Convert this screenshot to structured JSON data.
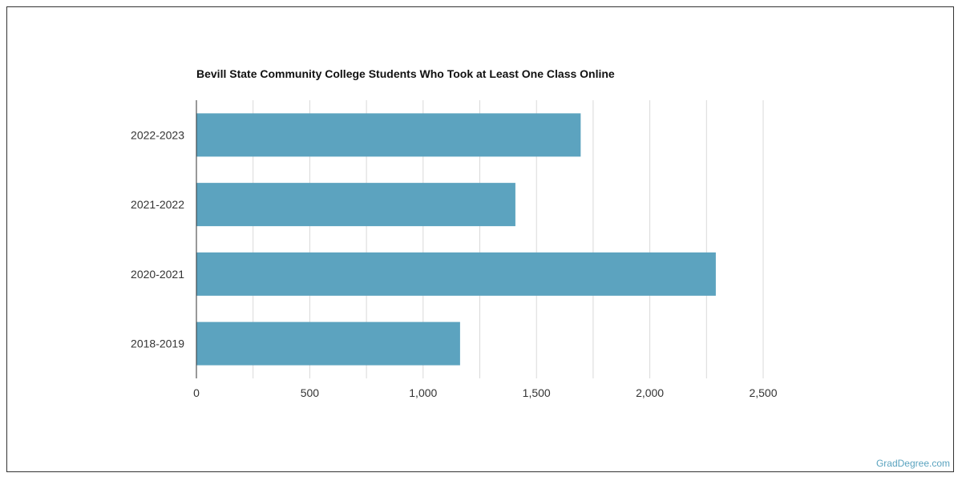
{
  "chart_data": {
    "type": "bar",
    "orientation": "horizontal",
    "title": "Bevill State Community College Students Who Took at Least One Class Online",
    "categories": [
      "2022-2023",
      "2021-2022",
      "2020-2021",
      "2018-2019"
    ],
    "values": [
      1695,
      1407,
      2291,
      1163
    ],
    "xlim": [
      0,
      2500
    ],
    "xticks": [
      0,
      500,
      1000,
      1500,
      2000,
      2500
    ],
    "xtick_labels": [
      "0",
      "500",
      "1,000",
      "1,500",
      "2,000",
      "2,500"
    ],
    "xlabel": "",
    "ylabel": "",
    "grid": true,
    "bar_color": "#5ca3bf"
  },
  "watermark": "GradDegree.com"
}
